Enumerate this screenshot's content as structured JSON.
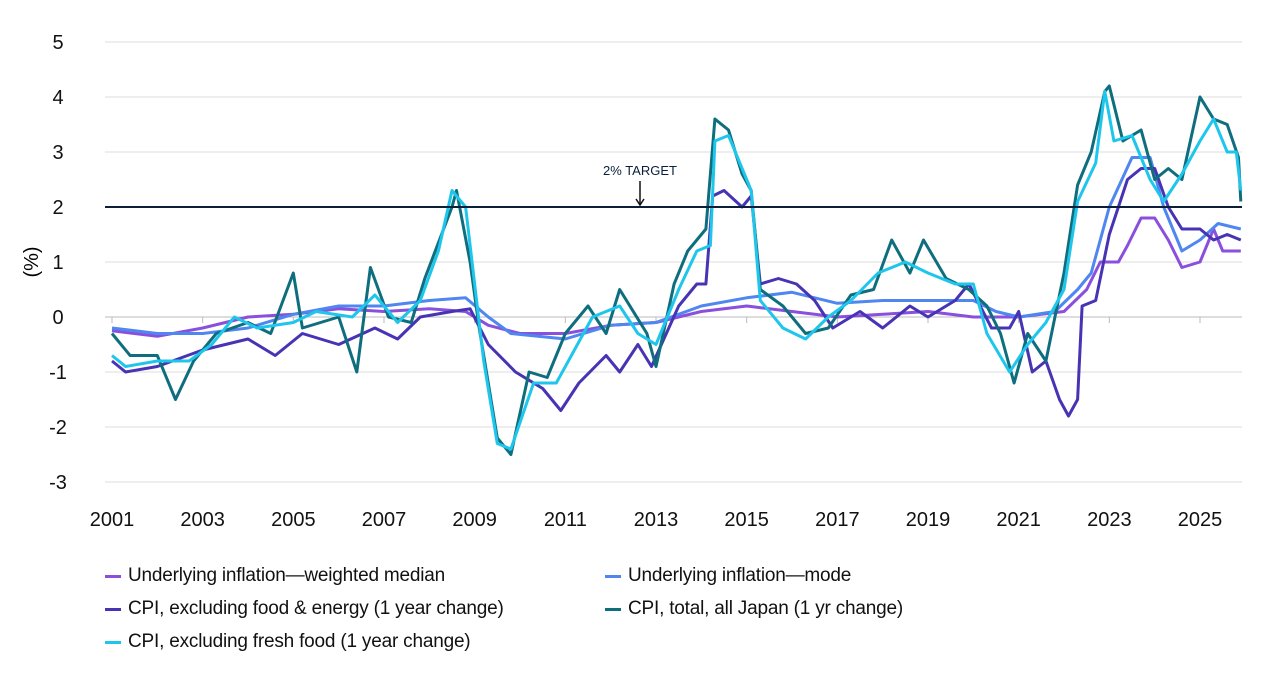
{
  "chart_data": {
    "type": "line",
    "title": "",
    "xlabel": "",
    "ylabel": "(%)",
    "xlim": [
      2001,
      2025.9
    ],
    "ylim": [
      -3,
      5
    ],
    "x_ticks": [
      "2001",
      "2003",
      "2005",
      "2007",
      "2009",
      "2011",
      "2013",
      "2015",
      "2017",
      "2019",
      "2021",
      "2023",
      "2025"
    ],
    "y_ticks": [
      "5",
      "4",
      "3",
      "2",
      "1",
      "0",
      "-1",
      "-2",
      "-3"
    ],
    "grid": "horizontal",
    "legend_position": "bottom",
    "reference_line": {
      "value": 2,
      "label": "2% TARGET",
      "color": "#0b1f3a"
    },
    "series": [
      {
        "name": "Underlying inflation—weighted median",
        "color": "#8a4fdc",
        "points": [
          [
            2001,
            -0.25
          ],
          [
            2002,
            -0.35
          ],
          [
            2003,
            -0.2
          ],
          [
            2004,
            0
          ],
          [
            2005,
            0.05
          ],
          [
            2006,
            0.15
          ],
          [
            2007,
            0.1
          ],
          [
            2008,
            0.15
          ],
          [
            2008.8,
            0.1
          ],
          [
            2009.3,
            -0.15
          ],
          [
            2010,
            -0.3
          ],
          [
            2011,
            -0.3
          ],
          [
            2012,
            -0.15
          ],
          [
            2013,
            -0.1
          ],
          [
            2014,
            0.1
          ],
          [
            2015,
            0.2
          ],
          [
            2016,
            0.1
          ],
          [
            2017,
            0.0
          ],
          [
            2018,
            0.05
          ],
          [
            2019,
            0.1
          ],
          [
            2020,
            0.0
          ],
          [
            2021,
            0.0
          ],
          [
            2022,
            0.1
          ],
          [
            2022.5,
            0.5
          ],
          [
            2022.8,
            1.0
          ],
          [
            2023.2,
            1.0
          ],
          [
            2023.4,
            1.3
          ],
          [
            2023.7,
            1.8
          ],
          [
            2024.0,
            1.8
          ],
          [
            2024.3,
            1.4
          ],
          [
            2024.6,
            0.9
          ],
          [
            2025.0,
            1.0
          ],
          [
            2025.3,
            1.6
          ],
          [
            2025.5,
            1.2
          ],
          [
            2025.9,
            1.2
          ]
        ]
      },
      {
        "name": "Underlying inflation—mode",
        "color": "#4f86f0",
        "points": [
          [
            2001,
            -0.2
          ],
          [
            2002,
            -0.3
          ],
          [
            2003,
            -0.3
          ],
          [
            2004,
            -0.2
          ],
          [
            2005,
            0.05
          ],
          [
            2006,
            0.2
          ],
          [
            2007,
            0.2
          ],
          [
            2008,
            0.3
          ],
          [
            2008.8,
            0.35
          ],
          [
            2009.3,
            0.0
          ],
          [
            2009.8,
            -0.3
          ],
          [
            2011,
            -0.4
          ],
          [
            2012,
            -0.15
          ],
          [
            2013,
            -0.1
          ],
          [
            2014,
            0.2
          ],
          [
            2015,
            0.35
          ],
          [
            2016,
            0.45
          ],
          [
            2017,
            0.25
          ],
          [
            2018,
            0.3
          ],
          [
            2019,
            0.3
          ],
          [
            2020,
            0.3
          ],
          [
            2020.5,
            0.1
          ],
          [
            2021,
            0.0
          ],
          [
            2021.8,
            0.1
          ],
          [
            2022.3,
            0.5
          ],
          [
            2022.6,
            0.8
          ],
          [
            2023.0,
            2.0
          ],
          [
            2023.5,
            2.9
          ],
          [
            2023.9,
            2.9
          ],
          [
            2024.2,
            2.0
          ],
          [
            2024.6,
            1.2
          ],
          [
            2025.0,
            1.4
          ],
          [
            2025.4,
            1.7
          ],
          [
            2025.9,
            1.6
          ]
        ]
      },
      {
        "name": "CPI, excluding food & energy (1 year change)",
        "color": "#4634b4",
        "points": [
          [
            2001,
            -0.8
          ],
          [
            2001.3,
            -1.0
          ],
          [
            2002,
            -0.9
          ],
          [
            2003,
            -0.6
          ],
          [
            2004,
            -0.4
          ],
          [
            2004.6,
            -0.7
          ],
          [
            2005.2,
            -0.3
          ],
          [
            2006,
            -0.5
          ],
          [
            2006.8,
            -0.2
          ],
          [
            2007.3,
            -0.4
          ],
          [
            2007.8,
            0.0
          ],
          [
            2008.5,
            0.1
          ],
          [
            2008.9,
            0.15
          ],
          [
            2009.3,
            -0.5
          ],
          [
            2009.9,
            -1.0
          ],
          [
            2010.5,
            -1.3
          ],
          [
            2010.9,
            -1.7
          ],
          [
            2011.3,
            -1.2
          ],
          [
            2011.9,
            -0.7
          ],
          [
            2012.2,
            -1.0
          ],
          [
            2012.6,
            -0.5
          ],
          [
            2012.9,
            -0.9
          ],
          [
            2013.5,
            0.2
          ],
          [
            2013.9,
            0.6
          ],
          [
            2014.1,
            0.6
          ],
          [
            2014.25,
            2.2
          ],
          [
            2014.5,
            2.3
          ],
          [
            2014.9,
            2.0
          ],
          [
            2015.1,
            2.2
          ],
          [
            2015.3,
            0.6
          ],
          [
            2015.7,
            0.7
          ],
          [
            2016.1,
            0.6
          ],
          [
            2016.5,
            0.3
          ],
          [
            2016.9,
            -0.2
          ],
          [
            2017.5,
            0.1
          ],
          [
            2018,
            -0.2
          ],
          [
            2018.6,
            0.2
          ],
          [
            2019,
            0.0
          ],
          [
            2019.6,
            0.3
          ],
          [
            2019.9,
            0.6
          ],
          [
            2020.4,
            -0.2
          ],
          [
            2020.8,
            -0.2
          ],
          [
            2021.0,
            0.1
          ],
          [
            2021.3,
            -1.0
          ],
          [
            2021.6,
            -0.8
          ],
          [
            2021.9,
            -1.5
          ],
          [
            2022.1,
            -1.8
          ],
          [
            2022.3,
            -1.5
          ],
          [
            2022.4,
            0.2
          ],
          [
            2022.7,
            0.3
          ],
          [
            2023.0,
            1.5
          ],
          [
            2023.4,
            2.5
          ],
          [
            2023.7,
            2.7
          ],
          [
            2024.0,
            2.7
          ],
          [
            2024.3,
            2.0
          ],
          [
            2024.6,
            1.6
          ],
          [
            2025.0,
            1.6
          ],
          [
            2025.3,
            1.4
          ],
          [
            2025.6,
            1.5
          ],
          [
            2025.9,
            1.4
          ]
        ]
      },
      {
        "name": "CPI, total, all Japan (1 yr change)",
        "color": "#0f6e7e",
        "points": [
          [
            2001,
            -0.3
          ],
          [
            2001.4,
            -0.7
          ],
          [
            2002,
            -0.7
          ],
          [
            2002.4,
            -1.5
          ],
          [
            2002.8,
            -0.8
          ],
          [
            2003.3,
            -0.3
          ],
          [
            2004,
            -0.1
          ],
          [
            2004.5,
            -0.3
          ],
          [
            2005.0,
            0.8
          ],
          [
            2005.2,
            -0.2
          ],
          [
            2006.0,
            0.0
          ],
          [
            2006.4,
            -1.0
          ],
          [
            2006.7,
            0.9
          ],
          [
            2007.1,
            0.0
          ],
          [
            2007.6,
            -0.1
          ],
          [
            2007.9,
            0.7
          ],
          [
            2008.5,
            2.0
          ],
          [
            2008.6,
            2.3
          ],
          [
            2008.9,
            1.0
          ],
          [
            2009.1,
            -0.2
          ],
          [
            2009.5,
            -2.2
          ],
          [
            2009.8,
            -2.5
          ],
          [
            2010.2,
            -1.0
          ],
          [
            2010.6,
            -1.1
          ],
          [
            2011.0,
            -0.3
          ],
          [
            2011.5,
            0.2
          ],
          [
            2011.9,
            -0.3
          ],
          [
            2012.2,
            0.5
          ],
          [
            2012.8,
            -0.3
          ],
          [
            2013.0,
            -0.9
          ],
          [
            2013.4,
            0.6
          ],
          [
            2013.7,
            1.2
          ],
          [
            2014.1,
            1.6
          ],
          [
            2014.3,
            3.6
          ],
          [
            2014.6,
            3.4
          ],
          [
            2014.9,
            2.6
          ],
          [
            2015.1,
            2.3
          ],
          [
            2015.3,
            0.5
          ],
          [
            2015.8,
            0.2
          ],
          [
            2016.3,
            -0.3
          ],
          [
            2016.8,
            -0.2
          ],
          [
            2017.3,
            0.4
          ],
          [
            2017.8,
            0.5
          ],
          [
            2018.2,
            1.4
          ],
          [
            2018.6,
            0.8
          ],
          [
            2018.9,
            1.4
          ],
          [
            2019.4,
            0.7
          ],
          [
            2019.9,
            0.5
          ],
          [
            2020.3,
            0.2
          ],
          [
            2020.6,
            -0.3
          ],
          [
            2020.9,
            -1.2
          ],
          [
            2021.2,
            -0.3
          ],
          [
            2021.6,
            -0.8
          ],
          [
            2022.0,
            0.8
          ],
          [
            2022.3,
            2.4
          ],
          [
            2022.6,
            3.0
          ],
          [
            2022.9,
            4.1
          ],
          [
            2023.0,
            4.2
          ],
          [
            2023.3,
            3.2
          ],
          [
            2023.7,
            3.4
          ],
          [
            2024.0,
            2.5
          ],
          [
            2024.3,
            2.7
          ],
          [
            2024.6,
            2.5
          ],
          [
            2025.0,
            4.0
          ],
          [
            2025.3,
            3.6
          ],
          [
            2025.6,
            3.5
          ],
          [
            2025.85,
            2.9
          ],
          [
            2025.9,
            2.1
          ]
        ]
      },
      {
        "name": "CPI, excluding fresh food (1 year change)",
        "color": "#1fc6ec",
        "points": [
          [
            2001,
            -0.7
          ],
          [
            2001.3,
            -0.9
          ],
          [
            2002,
            -0.8
          ],
          [
            2002.7,
            -0.8
          ],
          [
            2003.2,
            -0.5
          ],
          [
            2003.7,
            0.0
          ],
          [
            2004.2,
            -0.2
          ],
          [
            2005,
            -0.1
          ],
          [
            2005.5,
            0.1
          ],
          [
            2006.3,
            0.0
          ],
          [
            2006.8,
            0.4
          ],
          [
            2007.3,
            -0.1
          ],
          [
            2007.8,
            0.3
          ],
          [
            2008.2,
            1.2
          ],
          [
            2008.5,
            2.3
          ],
          [
            2008.8,
            2.0
          ],
          [
            2009.2,
            -0.8
          ],
          [
            2009.5,
            -2.3
          ],
          [
            2009.8,
            -2.4
          ],
          [
            2010.3,
            -1.2
          ],
          [
            2010.8,
            -1.2
          ],
          [
            2011.2,
            -0.6
          ],
          [
            2011.6,
            0.0
          ],
          [
            2012.2,
            0.2
          ],
          [
            2012.6,
            -0.3
          ],
          [
            2013.0,
            -0.5
          ],
          [
            2013.5,
            0.5
          ],
          [
            2013.9,
            1.2
          ],
          [
            2014.2,
            1.3
          ],
          [
            2014.3,
            3.2
          ],
          [
            2014.6,
            3.3
          ],
          [
            2014.9,
            2.7
          ],
          [
            2015.1,
            2.3
          ],
          [
            2015.3,
            0.3
          ],
          [
            2015.8,
            -0.2
          ],
          [
            2016.3,
            -0.4
          ],
          [
            2016.8,
            0.0
          ],
          [
            2017.3,
            0.3
          ],
          [
            2017.9,
            0.8
          ],
          [
            2018.5,
            1.0
          ],
          [
            2019.0,
            0.8
          ],
          [
            2019.6,
            0.6
          ],
          [
            2020.0,
            0.6
          ],
          [
            2020.3,
            -0.3
          ],
          [
            2020.8,
            -1.0
          ],
          [
            2021.2,
            -0.5
          ],
          [
            2021.6,
            -0.1
          ],
          [
            2022.0,
            0.5
          ],
          [
            2022.3,
            2.1
          ],
          [
            2022.7,
            2.8
          ],
          [
            2022.9,
            4.1
          ],
          [
            2023.1,
            3.2
          ],
          [
            2023.5,
            3.3
          ],
          [
            2023.9,
            2.5
          ],
          [
            2024.2,
            2.1
          ],
          [
            2024.6,
            2.6
          ],
          [
            2025.0,
            3.2
          ],
          [
            2025.3,
            3.6
          ],
          [
            2025.6,
            3.0
          ],
          [
            2025.8,
            3.0
          ],
          [
            2025.9,
            2.3
          ]
        ]
      }
    ]
  }
}
